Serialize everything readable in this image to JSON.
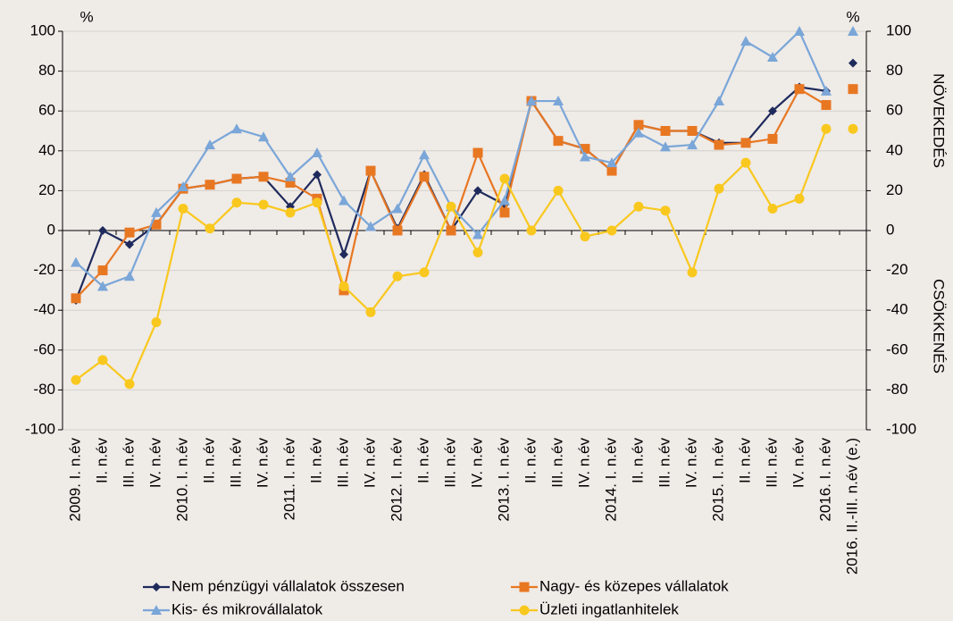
{
  "chart_data": {
    "type": "line",
    "y_unit": "%",
    "y2_unit": "%",
    "y2_annotations": [
      "NÖVEKEDÉS",
      "CSÖKKENÉS"
    ],
    "categories": [
      "2009. I. n.év",
      "II. n.év",
      "III. n.év",
      "IV. n.év",
      "2010. I. n.év",
      "II. n.év",
      "III. n.év",
      "IV. n.év",
      "2011. I. n.év",
      "II. n.év",
      "III. n.év",
      "IV. n.év",
      "2012. I. n.év",
      "II. n.év",
      "III. n.év",
      "IV. n.év",
      "2013. I. n.év",
      "II. n.év",
      "III. n.év",
      "IV. n.év",
      "2014. I. n.év",
      "II. n.év",
      "III. n.év",
      "IV. n.év",
      "2015. I. n.év",
      "II. n.év",
      "III. n.év",
      "IV. n.év",
      "2016. I. n.év",
      "2016. II.-III. n.év (e.)"
    ],
    "last_point_separate": true,
    "series": [
      {
        "name": "Nem pénzügyi vállalatok összesen",
        "color": "#1f2a5c",
        "marker": "diamond",
        "values": [
          -35,
          0,
          -7,
          3,
          21,
          23,
          26,
          27,
          12,
          28,
          -12,
          30,
          1,
          28,
          0,
          20,
          13,
          65,
          45,
          41,
          30,
          53,
          50,
          50,
          44,
          44,
          60,
          72,
          70,
          84
        ]
      },
      {
        "name": "Nagy- és közepes vállalatok",
        "color": "#e87722",
        "marker": "square",
        "values": [
          -34,
          -20,
          -1,
          3,
          21,
          23,
          26,
          27,
          24,
          16,
          -30,
          30,
          0,
          27,
          0,
          39,
          9,
          65,
          45,
          41,
          30,
          53,
          50,
          50,
          43,
          44,
          46,
          71,
          63,
          71
        ]
      },
      {
        "name": "Kis- és mikrovállalatok",
        "color": "#7aa6d8",
        "marker": "triangle",
        "values": [
          -16,
          -28,
          -23,
          9,
          22,
          43,
          51,
          47,
          27,
          39,
          15,
          2,
          11,
          38,
          12,
          -2,
          15,
          65,
          65,
          37,
          34,
          49,
          42,
          43,
          65,
          95,
          87,
          100,
          70,
          100
        ]
      },
      {
        "name": "Üzleti ingatlanhitelek",
        "color": "#f9c81e",
        "marker": "circle",
        "values": [
          -75,
          -65,
          -77,
          -46,
          11,
          1,
          14,
          13,
          9,
          14,
          -28,
          -41,
          -23,
          -21,
          12,
          -11,
          26,
          0,
          20,
          -3,
          0,
          12,
          10,
          -21,
          21,
          34,
          11,
          16,
          51,
          51
        ]
      }
    ],
    "ylim": [
      -100,
      100
    ],
    "yticks": [
      -100,
      -80,
      -60,
      -40,
      -20,
      0,
      20,
      40,
      60,
      80,
      100
    ],
    "y2lim": [
      -100,
      100
    ],
    "y2ticks": [
      -100,
      -80,
      -60,
      -40,
      -20,
      0,
      20,
      40,
      60,
      80,
      100
    ],
    "grid": true
  }
}
